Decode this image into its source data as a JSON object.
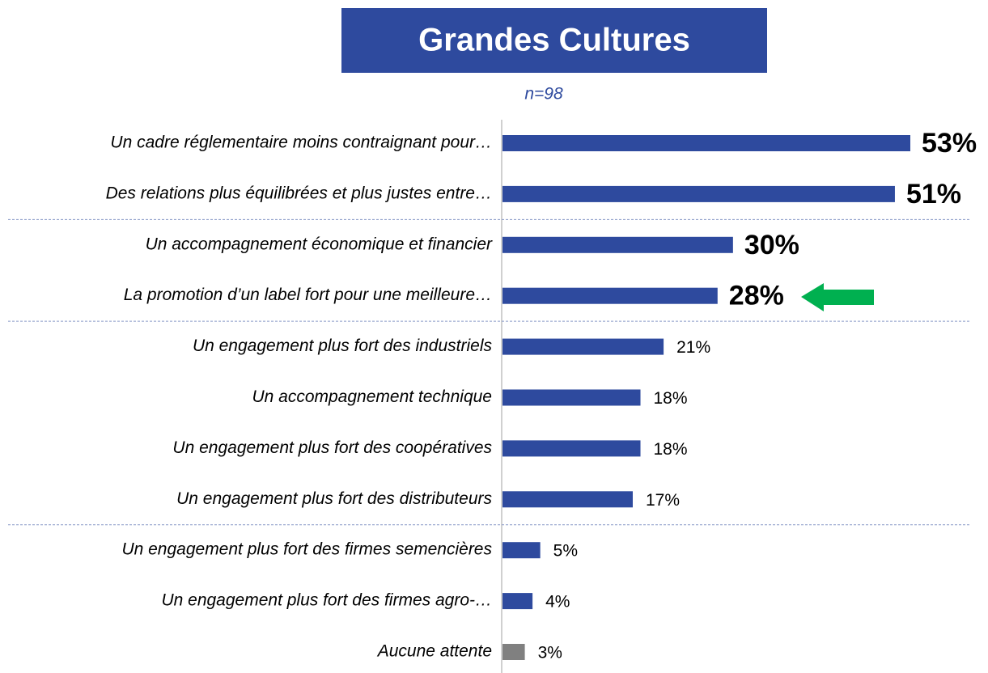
{
  "chart_data": {
    "type": "hbar",
    "title": "Grandes Cultures",
    "subtitle": "n=98",
    "categories": [
      "Un cadre réglementaire moins contraignant pour…",
      "Des relations plus équilibrées et plus justes entre…",
      "Un accompagnement économique et financier",
      "La promotion d’un label fort pour une meilleure…",
      "Un engagement plus fort des industriels",
      "Un accompagnement technique",
      "Un engagement plus fort des coopératives",
      "Un engagement plus fort des distributeurs",
      "Un engagement plus fort des firmes semencières",
      "Un engagement plus fort des firmes agro-…",
      "Aucune attente"
    ],
    "values": [
      53,
      51,
      30,
      28,
      21,
      18,
      18,
      17,
      5,
      4,
      3
    ],
    "value_labels": [
      "53%",
      "51%",
      "30%",
      "28%",
      "21%",
      "18%",
      "18%",
      "17%",
      "5%",
      "4%",
      "3%"
    ],
    "colors": [
      "#2e4a9e",
      "#2e4a9e",
      "#2e4a9e",
      "#2e4a9e",
      "#2e4a9e",
      "#2e4a9e",
      "#2e4a9e",
      "#2e4a9e",
      "#2e4a9e",
      "#2e4a9e",
      "#808080"
    ]
  }
}
